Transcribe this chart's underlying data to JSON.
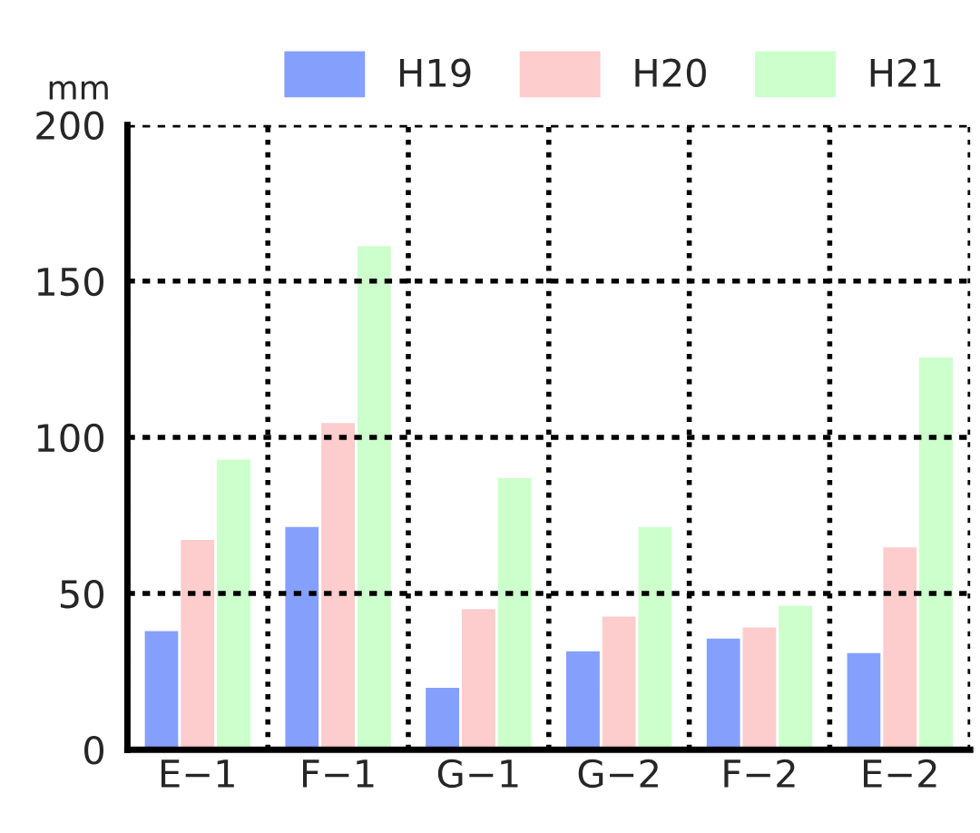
{
  "chart_data": {
    "type": "bar",
    "ylabel": "mm",
    "categories": [
      "E−1",
      "F−1",
      "G−1",
      "G−2",
      "F−2",
      "E−2"
    ],
    "series": [
      {
        "name": "H19",
        "color": "#85a0fc",
        "values": [
          38.4,
          71.7,
          20.2,
          31.9,
          36.0,
          31.3
        ]
      },
      {
        "name": "H20",
        "color": "#fdcccc",
        "values": [
          67.6,
          105,
          45.4,
          43.0,
          39.5,
          65.2
        ]
      },
      {
        "name": "H21",
        "color": "#ccffcc",
        "values": [
          93.3,
          161.6,
          87.4,
          71.7,
          46.5,
          126
        ]
      }
    ],
    "ylim": [
      0,
      200
    ],
    "yticks": [
      0,
      50,
      100,
      150,
      200
    ],
    "grid": true,
    "legend": "top right"
  }
}
